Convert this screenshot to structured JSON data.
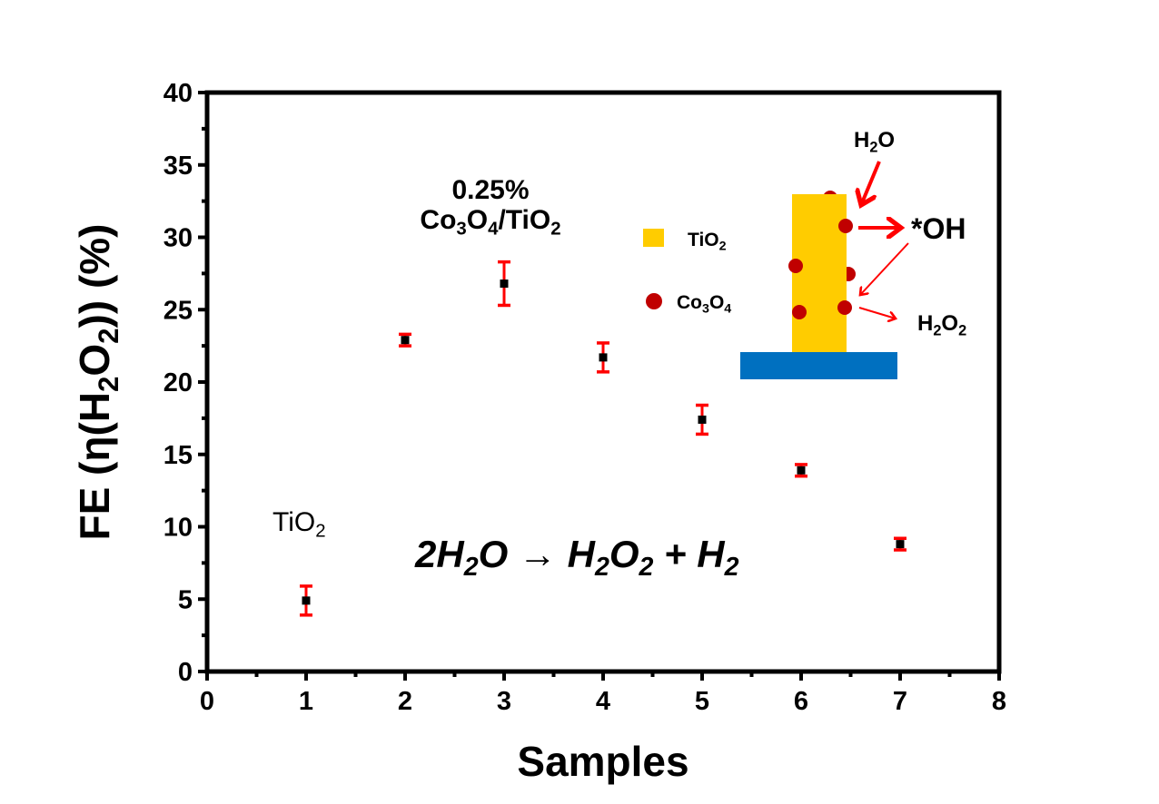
{
  "chart_data": {
    "type": "scatter",
    "title": "",
    "xlabel": "Samples",
    "ylabel": [
      {
        "t": "FE (η(H"
      },
      {
        "t": "2",
        "sub": true
      },
      {
        "t": "O"
      },
      {
        "t": "2",
        "sub": true
      },
      {
        "t": ")) (%)"
      }
    ],
    "xlim": [
      0,
      8
    ],
    "ylim": [
      0,
      40
    ],
    "xticks": [
      "0",
      "1",
      "2",
      "3",
      "4",
      "5",
      "6",
      "7",
      "8"
    ],
    "yticks": [
      "0",
      "5",
      "10",
      "15",
      "20",
      "25",
      "30",
      "35",
      "40"
    ],
    "grid": false,
    "series": [
      {
        "name": "FE",
        "x": [
          1,
          2,
          3,
          4,
          5,
          6,
          7
        ],
        "y": [
          4.9,
          22.9,
          26.8,
          21.7,
          17.4,
          13.9,
          8.8
        ],
        "yerr": [
          1.0,
          0.4,
          1.5,
          1.0,
          1.0,
          0.4,
          0.4
        ],
        "marker_color": "#000000",
        "error_color": "#ff0000"
      }
    ],
    "annotations": [
      {
        "id": "pct",
        "parts": [
          {
            "t": "0.25%"
          }
        ]
      },
      {
        "id": "cotio",
        "parts": [
          {
            "t": "Co"
          },
          {
            "t": "3",
            "sub": true
          },
          {
            "t": "O"
          },
          {
            "t": "4",
            "sub": true
          },
          {
            "t": "/TiO"
          },
          {
            "t": "2",
            "sub": true
          }
        ]
      },
      {
        "id": "tio2",
        "parts": [
          {
            "t": "TiO"
          },
          {
            "t": "2",
            "sub": true
          }
        ]
      },
      {
        "id": "eq",
        "parts": [
          {
            "t": "2H"
          },
          {
            "t": "2",
            "sub": true
          },
          {
            "t": "O → H"
          },
          {
            "t": "2",
            "sub": true
          },
          {
            "t": "O"
          },
          {
            "t": "2",
            "sub": true
          },
          {
            "t": " + H"
          },
          {
            "t": "2",
            "sub": true
          }
        ]
      }
    ],
    "inset": {
      "legend": [
        {
          "id": "leg-tio2",
          "parts": [
            {
              "t": "TiO"
            },
            {
              "t": "2",
              "sub": true
            }
          ],
          "color": "#ffcc00"
        },
        {
          "id": "leg-co",
          "parts": [
            {
              "t": "Co"
            },
            {
              "t": "3",
              "sub": true
            },
            {
              "t": "O"
            },
            {
              "t": "4",
              "sub": true
            }
          ],
          "color": "#c00000"
        }
      ],
      "labels": [
        {
          "id": "h2o",
          "parts": [
            {
              "t": "H"
            },
            {
              "t": "2",
              "sub": true
            },
            {
              "t": "O"
            }
          ]
        },
        {
          "id": "oh",
          "parts": [
            {
              "t": "*OH"
            }
          ]
        },
        {
          "id": "h2o2",
          "parts": [
            {
              "t": "H"
            },
            {
              "t": "2",
              "sub": true
            },
            {
              "t": "O"
            },
            {
              "t": "2",
              "sub": true
            }
          ]
        }
      ],
      "colors": {
        "rod": "#ffcc00",
        "substrate": "#0070c0",
        "particle": "#c00000",
        "arrow": "#ff0000"
      }
    }
  }
}
